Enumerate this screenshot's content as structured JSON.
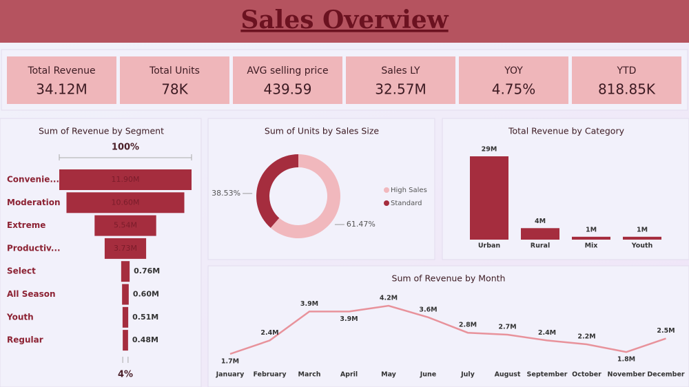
{
  "header": {
    "title": "Sales Overview"
  },
  "kpis": [
    {
      "label": "Total Revenue",
      "value": "34.12M"
    },
    {
      "label": "Total Units",
      "value": "78K"
    },
    {
      "label": "AVG selling price",
      "value": "439.59"
    },
    {
      "label": "Sales LY",
      "value": "32.57M"
    },
    {
      "label": "YOY",
      "value": "4.75%"
    },
    {
      "label": "YTD",
      "value": "818.85K"
    }
  ],
  "chart_data": [
    {
      "type": "funnel",
      "title": "Sum of Revenue by Segment",
      "color": "#a52d3e",
      "categories": [
        "Convenie...",
        "Moderation",
        "Extreme",
        "Productiv...",
        "Select",
        "All Season",
        "Youth",
        "Regular"
      ],
      "values": [
        11.9,
        10.6,
        5.54,
        3.73,
        0.76,
        0.6,
        0.51,
        0.48
      ],
      "value_labels": [
        "11.90M",
        "10.60M",
        "5.54M",
        "3.73M",
        "0.76M",
        "0.60M",
        "0.51M",
        "0.48M"
      ],
      "top_label": "100%",
      "bottom_label": "4%"
    },
    {
      "type": "donut",
      "title": "Sum of Units by Sales Size",
      "categories": [
        "High Sales",
        "Standard"
      ],
      "values": [
        61.47,
        38.53
      ],
      "value_labels": [
        "61.47%",
        "38.53%"
      ],
      "colors": [
        "#f1b8bd",
        "#a52d3e"
      ],
      "legend": "right"
    },
    {
      "type": "bar",
      "title": "Total Revenue by Category",
      "color": "#a52d3e",
      "categories": [
        "Urban",
        "Rural",
        "Mix",
        "Youth"
      ],
      "values": [
        29,
        4,
        1,
        1
      ],
      "value_labels": [
        "29M",
        "4M",
        "1M",
        "1M"
      ]
    },
    {
      "type": "line",
      "title": "Sum of Revenue by Month",
      "color": "#e8929b",
      "categories": [
        "January",
        "February",
        "March",
        "April",
        "May",
        "June",
        "July",
        "August",
        "September",
        "October",
        "November",
        "December"
      ],
      "values": [
        1.7,
        2.4,
        3.9,
        3.9,
        4.2,
        3.6,
        2.8,
        2.7,
        2.4,
        2.2,
        1.8,
        2.5
      ],
      "value_labels": [
        "1.7M",
        "2.4M",
        "3.9M",
        "3.9M",
        "4.2M",
        "3.6M",
        "2.8M",
        "2.7M",
        "2.4M",
        "2.2M",
        "1.8M",
        "2.5M"
      ]
    }
  ]
}
